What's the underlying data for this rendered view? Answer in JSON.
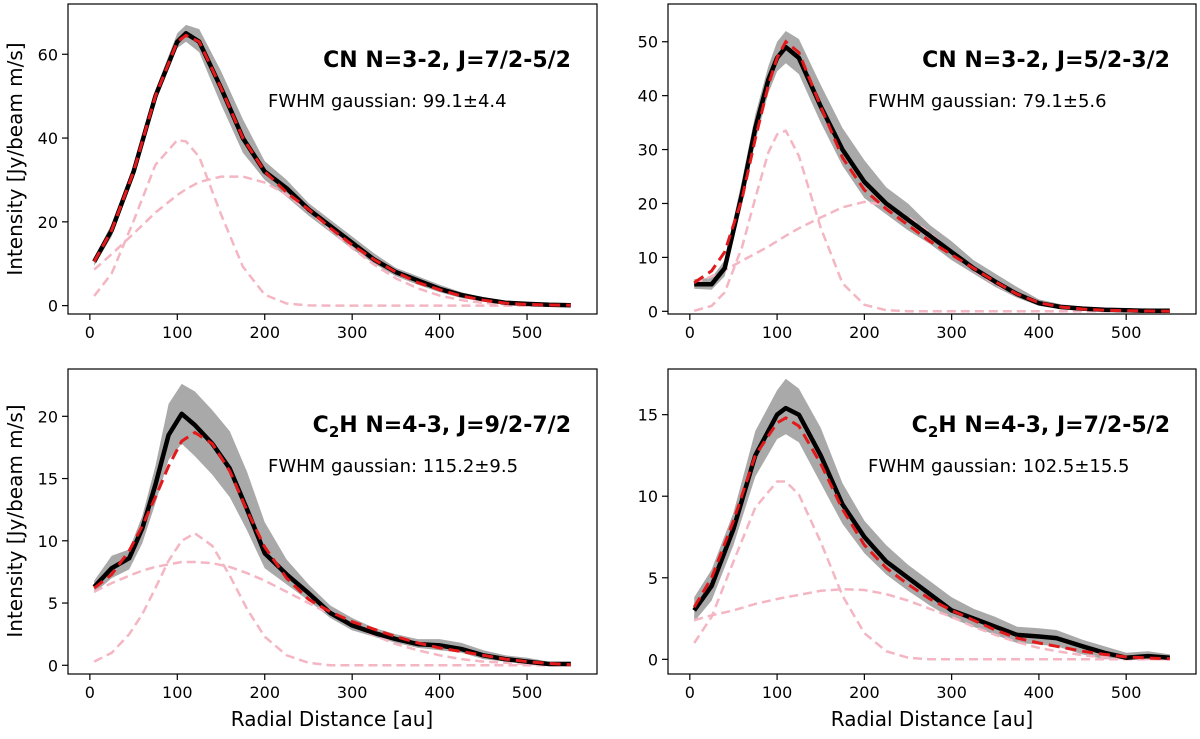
{
  "figure": {
    "xlabel": "Radial Distance [au]",
    "ylabel": "Intensity [Jy/beam m/s]"
  },
  "colors": {
    "band": "#a9a9a9",
    "data_line": "#000000",
    "fit_line": "#e31a1c",
    "component_line": "#f4b6c2"
  },
  "chart_data": [
    {
      "type": "line",
      "title": "CN N=3-2, J=7/2-5/2",
      "title_parts": [
        {
          "t": "CN N=3-2, J=7/2-5/2",
          "sub": false
        }
      ],
      "fwhm_text": "FWHM gaussian: 99.1±4.4",
      "xlim": [
        -25,
        580
      ],
      "ylim": [
        -2,
        72
      ],
      "xticks": [
        0,
        100,
        200,
        300,
        400,
        500
      ],
      "yticks": [
        0,
        20,
        40,
        60
      ],
      "x": [
        5,
        25,
        50,
        75,
        100,
        110,
        125,
        150,
        175,
        200,
        225,
        250,
        275,
        300,
        325,
        350,
        375,
        400,
        425,
        450,
        475,
        500,
        525,
        550
      ],
      "series": [
        {
          "role": "data",
          "values": [
            10.5,
            18,
            32,
            50,
            63,
            65,
            63,
            52,
            40,
            32,
            28,
            23,
            19,
            15,
            11,
            8,
            6,
            4,
            2.5,
            1.5,
            0.7,
            0.4,
            0.2,
            0.1
          ]
        },
        {
          "role": "fit",
          "values": [
            10.5,
            18,
            32,
            50,
            63,
            64.5,
            63,
            52,
            40,
            32,
            27,
            23,
            18.5,
            14.5,
            11,
            8,
            5.5,
            3.8,
            2.3,
            1.3,
            0.6,
            0.3,
            0.15,
            0.1
          ]
        },
        {
          "role": "band_lower",
          "values": [
            9.5,
            16.5,
            30.5,
            48.5,
            61.5,
            63,
            60.5,
            48,
            36.5,
            30,
            26,
            21.5,
            17.5,
            13.5,
            10,
            7,
            5,
            3.2,
            1.8,
            1,
            0.4,
            0.2,
            0.05,
            0
          ]
        },
        {
          "role": "band_upper",
          "values": [
            11.5,
            19.5,
            33.5,
            51.5,
            65,
            67,
            66,
            56,
            44.5,
            34.5,
            30,
            24.5,
            20.5,
            16.5,
            12.5,
            9,
            7,
            5,
            3.2,
            2,
            1,
            0.6,
            0.35,
            0.2
          ]
        },
        {
          "role": "component",
          "values": [
            2.3,
            7.7,
            20.2,
            33.6,
            39.5,
            39.2,
            35.5,
            21.8,
            9.3,
            2.6,
            0.5,
            0.06,
            0,
            0,
            0,
            0,
            0,
            0,
            0,
            0,
            0,
            0,
            0,
            0
          ]
        },
        {
          "role": "component",
          "values": [
            8.6,
            12.3,
            17.2,
            22.2,
            26.4,
            27.8,
            29.5,
            30.8,
            30.8,
            29.4,
            26.5,
            22.6,
            18.2,
            13.7,
            9.8,
            6.5,
            4.1,
            2.4,
            1.3,
            0.66,
            0.31,
            0.14,
            0.06,
            0.02
          ]
        }
      ]
    },
    {
      "type": "line",
      "title": "CN N=3-2, J=5/2-3/2",
      "title_parts": [
        {
          "t": "CN N=3-2, J=5/2-3/2",
          "sub": false
        }
      ],
      "fwhm_text": "FWHM gaussian: 79.1±5.6",
      "xlim": [
        -25,
        580
      ],
      "ylim": [
        -0.5,
        57
      ],
      "xticks": [
        0,
        100,
        200,
        300,
        400,
        500
      ],
      "yticks": [
        0,
        10,
        20,
        30,
        40,
        50
      ],
      "x": [
        5,
        25,
        40,
        60,
        75,
        90,
        100,
        110,
        125,
        150,
        175,
        200,
        225,
        250,
        275,
        300,
        325,
        350,
        375,
        400,
        425,
        450,
        475,
        500,
        525,
        550
      ],
      "series": [
        {
          "role": "data",
          "values": [
            5,
            5,
            8,
            22,
            34,
            43,
            47,
            49,
            47,
            38,
            30,
            24,
            20,
            17,
            14,
            11,
            8,
            5.5,
            3.2,
            1.5,
            0.8,
            0.5,
            0.3,
            0.2,
            0.1,
            0.1
          ]
        },
        {
          "role": "fit",
          "values": [
            5.3,
            7.5,
            11,
            21,
            32,
            42,
            47,
            50,
            48,
            38,
            28.5,
            22.5,
            19,
            16,
            13,
            10.5,
            8,
            5.5,
            3.2,
            1.6,
            0.8,
            0.4,
            0.2,
            0.1,
            0.05,
            0
          ]
        },
        {
          "role": "band_lower",
          "values": [
            4.2,
            4,
            6.5,
            20,
            31.5,
            40.5,
            44.5,
            46,
            44,
            35,
            27,
            21,
            18,
            15,
            12.5,
            9.5,
            7,
            4.5,
            2.5,
            1,
            0.4,
            0.2,
            0.1,
            0,
            0,
            0
          ]
        },
        {
          "role": "band_upper",
          "values": [
            6,
            6.2,
            9.5,
            24.5,
            36.5,
            45.5,
            50,
            52,
            50.5,
            42,
            34,
            28,
            23,
            20,
            16,
            13,
            9.5,
            7,
            4.5,
            2.2,
            1.3,
            0.9,
            0.6,
            0.4,
            0.3,
            0.2
          ]
        },
        {
          "role": "component",
          "values": [
            0.1,
            1,
            3.5,
            12,
            21,
            29.5,
            32.8,
            33.5,
            28.8,
            15.5,
            5.2,
            1.2,
            0.2,
            0,
            0,
            0,
            0,
            0,
            0,
            0,
            0,
            0,
            0,
            0,
            0,
            0
          ]
        },
        {
          "role": "component",
          "values": [
            5.1,
            6.5,
            7.6,
            9.4,
            10.7,
            12,
            13,
            14,
            15.4,
            17.4,
            19.3,
            20.3,
            19.7,
            17.5,
            14.5,
            11,
            7.6,
            5,
            3,
            1.6,
            0.8,
            0.4,
            0.2,
            0.08,
            0.03,
            0.01
          ]
        }
      ]
    },
    {
      "type": "line",
      "title": "C2H N=4-3, J=9/2-7/2",
      "title_parts": [
        {
          "t": "C",
          "sub": false
        },
        {
          "t": "2",
          "sub": true
        },
        {
          "t": "H N=4-3, J=9/2-7/2",
          "sub": false
        }
      ],
      "fwhm_text": "FWHM gaussian: 115.2±9.5",
      "xlim": [
        -25,
        580
      ],
      "ylim": [
        -0.7,
        23.8
      ],
      "xticks": [
        0,
        100,
        200,
        300,
        400,
        500
      ],
      "yticks": [
        0,
        5,
        10,
        15,
        20
      ],
      "x": [
        5,
        25,
        45,
        60,
        75,
        90,
        105,
        120,
        140,
        160,
        180,
        200,
        225,
        250,
        275,
        300,
        325,
        350,
        375,
        400,
        425,
        450,
        475,
        500,
        525,
        550
      ],
      "series": [
        {
          "role": "data",
          "values": [
            6.3,
            7.8,
            8.6,
            11,
            14.5,
            18.5,
            20.2,
            19.3,
            17.8,
            15.8,
            12.5,
            9,
            7.3,
            5.8,
            4.2,
            3.2,
            2.6,
            2.1,
            1.7,
            1.6,
            1.3,
            0.8,
            0.5,
            0.3,
            0.1,
            0.1
          ]
        },
        {
          "role": "fit",
          "values": [
            6.2,
            7.3,
            9.2,
            11.2,
            13.5,
            16,
            18,
            18.7,
            17.8,
            15.6,
            12.4,
            9.5,
            7,
            5.3,
            4.3,
            3.5,
            2.9,
            2.3,
            1.8,
            1.4,
            1.1,
            0.8,
            0.5,
            0.3,
            0.15,
            0.05
          ]
        },
        {
          "role": "band_lower",
          "values": [
            5.8,
            7,
            7.7,
            9.8,
            13,
            16.5,
            17.8,
            16.8,
            15.3,
            13.5,
            10.8,
            7.8,
            6.5,
            5.2,
            3.8,
            2.8,
            2.3,
            1.8,
            1.4,
            1.2,
            1,
            0.5,
            0.3,
            0.1,
            0,
            0
          ]
        },
        {
          "role": "band_upper",
          "values": [
            6.8,
            8.8,
            9.3,
            12,
            16,
            21,
            22.6,
            22,
            20.5,
            18.8,
            15.5,
            11.5,
            8.5,
            6.5,
            4.8,
            3.8,
            3,
            2.5,
            2.1,
            2.1,
            1.8,
            1.2,
            0.8,
            0.6,
            0.3,
            0.3
          ]
        },
        {
          "role": "component",
          "values": [
            0.3,
            1,
            2.5,
            4.1,
            6.2,
            8.4,
            10,
            10.6,
            9.6,
            7.2,
            4.5,
            2.3,
            0.8,
            0.2,
            0,
            0,
            0,
            0,
            0,
            0,
            0,
            0,
            0,
            0,
            0,
            0
          ]
        },
        {
          "role": "component",
          "values": [
            5.9,
            6.6,
            7.2,
            7.6,
            7.9,
            8.1,
            8.3,
            8.3,
            8.2,
            7.9,
            7.4,
            6.8,
            5.9,
            5,
            4.1,
            3.2,
            2.4,
            1.7,
            1.2,
            0.8,
            0.5,
            0.3,
            0.2,
            0.1,
            0.05,
            0.02
          ]
        }
      ]
    },
    {
      "type": "line",
      "title": "C2H N=4-3, J=7/2-5/2",
      "title_parts": [
        {
          "t": "C",
          "sub": false
        },
        {
          "t": "2",
          "sub": true
        },
        {
          "t": "H N=4-3, J=7/2-5/2",
          "sub": false
        }
      ],
      "fwhm_text": "FWHM gaussian: 102.5±15.5",
      "xlim": [
        -25,
        580
      ],
      "ylim": [
        -0.9,
        17.8
      ],
      "xticks": [
        0,
        100,
        200,
        300,
        400,
        500
      ],
      "yticks": [
        0,
        5,
        10,
        15
      ],
      "x": [
        5,
        25,
        50,
        75,
        100,
        110,
        125,
        150,
        175,
        200,
        225,
        250,
        275,
        300,
        325,
        350,
        375,
        400,
        420,
        450,
        475,
        500,
        525,
        550
      ],
      "series": [
        {
          "role": "data",
          "values": [
            3,
            4.5,
            8,
            12.5,
            15,
            15.4,
            15,
            12.5,
            9.5,
            7.5,
            6,
            5,
            4,
            3,
            2.5,
            2,
            1.5,
            1.4,
            1.3,
            0.8,
            0.4,
            0.1,
            0.2,
            0.1
          ]
        },
        {
          "role": "fit",
          "values": [
            3.2,
            5,
            8.5,
            12.5,
            14.5,
            14.8,
            14.3,
            12,
            9.2,
            7,
            5.6,
            4.6,
            3.7,
            3,
            2.4,
            1.8,
            1.3,
            1,
            0.8,
            0.5,
            0.3,
            0.15,
            0.08,
            0.03
          ]
        },
        {
          "role": "band_lower",
          "values": [
            2.3,
            3.6,
            7,
            11.2,
            13.5,
            13.8,
            13.3,
            10.8,
            8.3,
            6.5,
            5.2,
            4.2,
            3.3,
            2.5,
            2,
            1.5,
            1,
            0.9,
            0.8,
            0.3,
            0,
            0,
            0,
            0
          ]
        },
        {
          "role": "band_upper",
          "values": [
            3.8,
            5.5,
            9,
            14,
            16.5,
            17.2,
            16.6,
            14.2,
            10.8,
            8.5,
            7,
            5.8,
            4.8,
            3.8,
            3.1,
            2.6,
            2,
            1.9,
            1.8,
            1.2,
            0.8,
            0.4,
            0.5,
            0.3
          ]
        },
        {
          "role": "component",
          "values": [
            1,
            2.6,
            6,
            9.3,
            10.9,
            10.9,
            10.1,
            7.2,
            3.9,
            1.6,
            0.5,
            0.1,
            0,
            0,
            0,
            0,
            0,
            0,
            0,
            0,
            0,
            0,
            0,
            0
          ]
        },
        {
          "role": "component",
          "values": [
            2.4,
            2.7,
            3,
            3.4,
            3.7,
            3.8,
            3.95,
            4.2,
            4.3,
            4.25,
            4,
            3.6,
            3.1,
            2.6,
            2,
            1.5,
            1.05,
            0.7,
            0.5,
            0.25,
            0.12,
            0.05,
            0.02,
            0.01
          ]
        }
      ]
    }
  ]
}
